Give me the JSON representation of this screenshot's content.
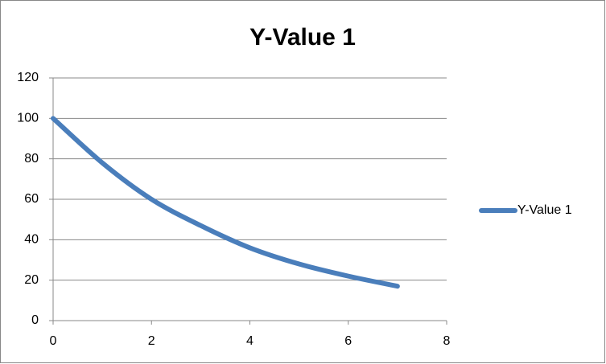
{
  "chart_data": {
    "type": "line",
    "title": "Y-Value 1",
    "x": [
      0,
      1,
      2,
      3,
      4,
      5,
      6,
      7
    ],
    "series": [
      {
        "name": "Y-Value 1",
        "color": "#4a7ebb",
        "values": [
          100,
          78,
          60,
          47,
          36,
          28,
          22,
          17
        ]
      }
    ],
    "xlim": [
      0,
      8
    ],
    "xticks": [
      0,
      2,
      4,
      6,
      8
    ],
    "ylim": [
      0,
      120
    ],
    "yticks": [
      0,
      20,
      40,
      60,
      80,
      100,
      120
    ],
    "grid": true,
    "legend": "right",
    "smooth": true
  }
}
